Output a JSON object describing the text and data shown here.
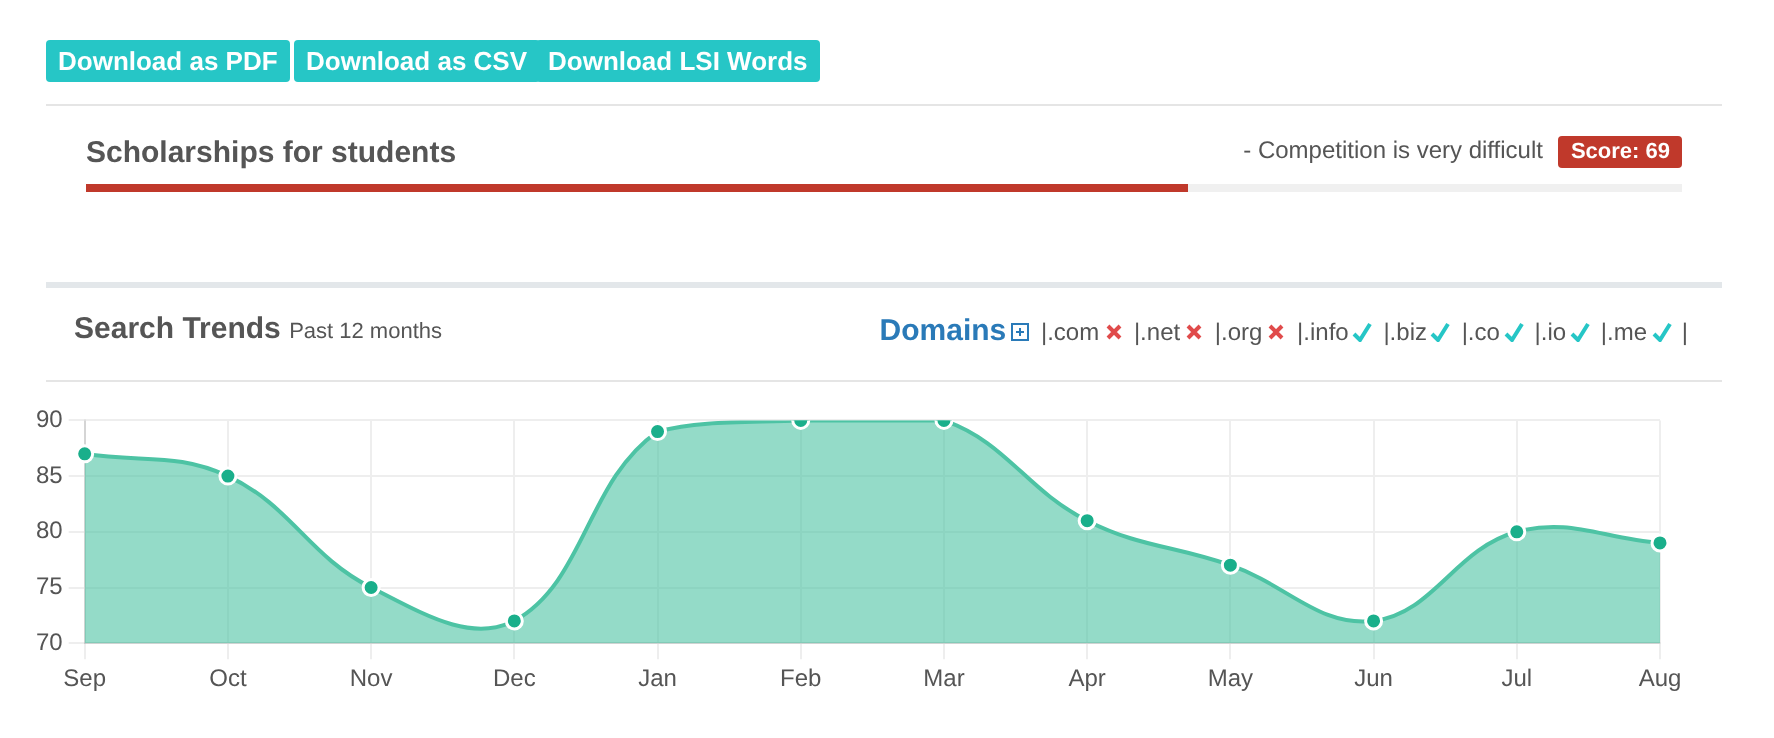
{
  "chart_data": {
    "type": "area",
    "title": "Search Trends",
    "subtitle": "Past 12 months",
    "categories": [
      "Sep",
      "Oct",
      "Nov",
      "Dec",
      "Jan",
      "Feb",
      "Mar",
      "Apr",
      "May",
      "Jun",
      "Jul",
      "Aug"
    ],
    "series": [
      {
        "color": "#4dc3a4",
        "values": [
          87,
          85,
          75,
          72,
          89,
          90,
          90,
          81,
          77,
          72,
          80,
          79
        ]
      }
    ],
    "ylim": [
      70,
      90
    ],
    "yticks": [
      70,
      75,
      80,
      85,
      90
    ],
    "grid": true,
    "marker": "circle",
    "legend": false,
    "annotations": [
      "Download as PDF",
      "Download as CSV",
      "Download LSI Words",
      "Scholarships for students",
      "- Competition is very difficult",
      "Score: 69",
      "Domains",
      "|.com",
      "|.net",
      "|.org",
      "|.info",
      "|.biz",
      "|.co",
      "|.io",
      "|.me",
      "|"
    ]
  }
}
